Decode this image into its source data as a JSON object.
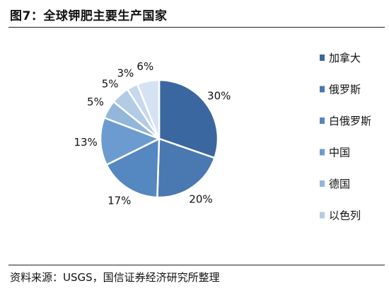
{
  "title": "图7：全球钾肥主要生产国家",
  "source": "资料来源：USGS，国信证券经济研究所整理",
  "chart_data": {
    "type": "pie",
    "title": "",
    "slices": [
      {
        "label": "加拿大",
        "value": 30,
        "display": "30%",
        "color": "#3B67A0"
      },
      {
        "label": "俄罗斯",
        "value": 20,
        "display": "20%",
        "color": "#4A78B1"
      },
      {
        "label": "白俄罗斯",
        "value": 17,
        "display": "17%",
        "color": "#5588C0"
      },
      {
        "label": "中国",
        "value": 13,
        "display": "13%",
        "color": "#6C9CCF"
      },
      {
        "label": "德国",
        "value": 5,
        "display": "5%",
        "color": "#93B6DB"
      },
      {
        "label": "以色列",
        "value": 5,
        "display": "5%",
        "color": "#B4CBE6"
      },
      {
        "label": "",
        "value": 3,
        "display": "3%",
        "color": "#C7D8EE"
      },
      {
        "label": "",
        "value": 6,
        "display": "6%",
        "color": "#D5E2F3"
      }
    ],
    "legend": [
      "加拿大",
      "俄罗斯",
      "白俄罗斯",
      "中国",
      "德国",
      "以色列"
    ],
    "legend_position": "right"
  }
}
